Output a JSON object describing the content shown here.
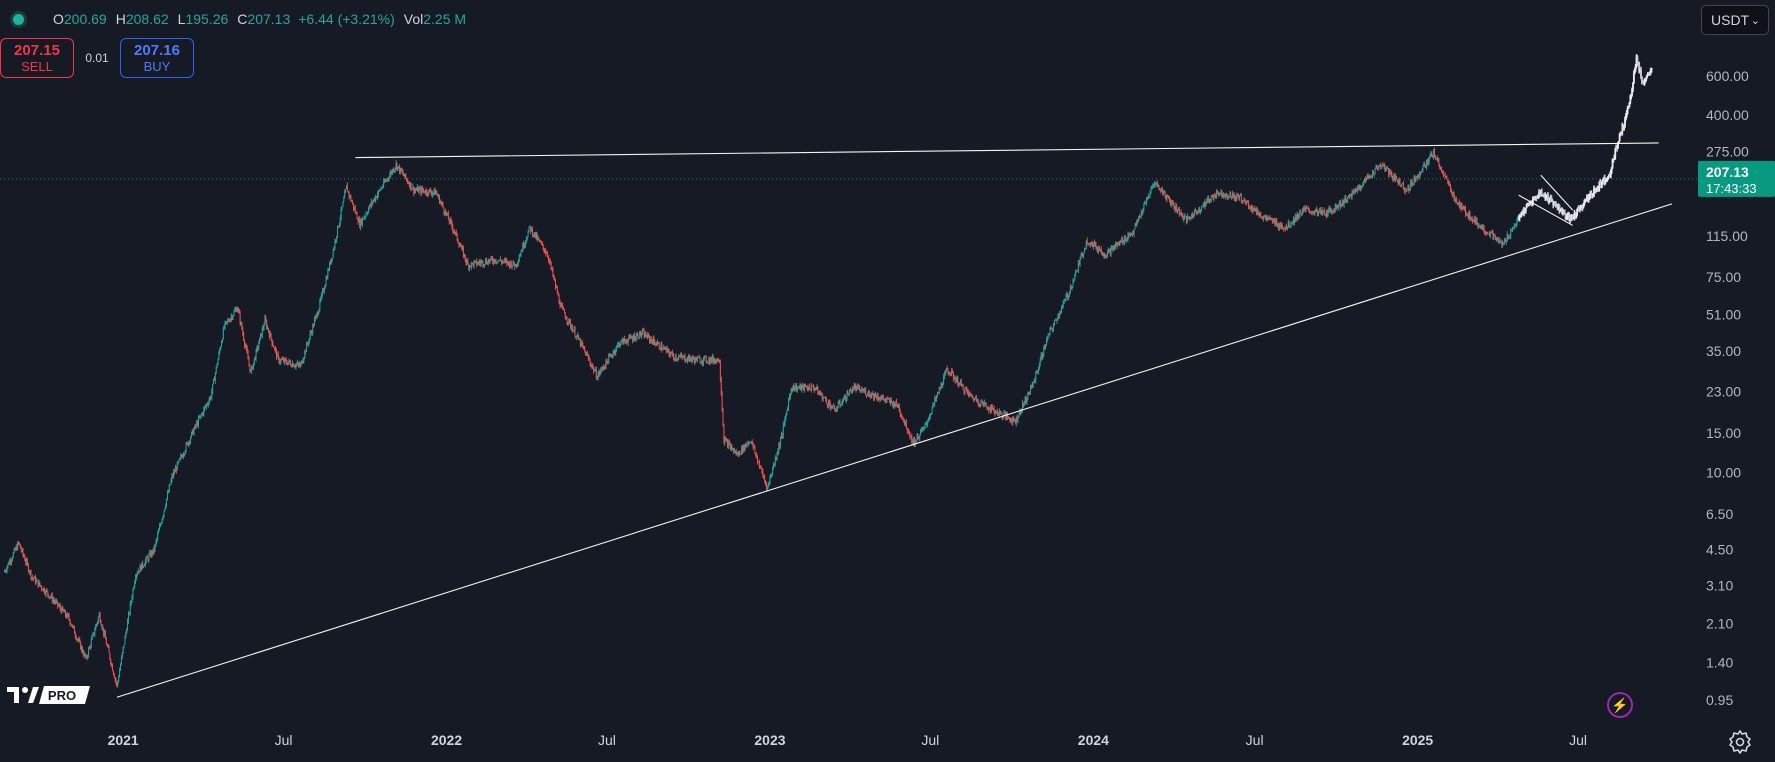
{
  "ohlc": {
    "open_label": "O",
    "open": "200.69",
    "high_label": "H",
    "high": "208.62",
    "low_label": "L",
    "low": "195.26",
    "close_label": "C",
    "close": "207.13",
    "change": "+6.44 (+3.21%)",
    "vol_label": "Vol",
    "vol": "2.25 M"
  },
  "trade": {
    "sell_price": "207.15",
    "sell_label": "SELL",
    "spread": "0.01",
    "buy_price": "207.16",
    "buy_label": "BUY"
  },
  "currency": "USDT",
  "price_label": {
    "price": "207.13",
    "countdown": "17:43:33"
  },
  "logo_text": "PRO",
  "colors": {
    "up": "#26a69a",
    "down": "#ef5350",
    "background": "#161a25",
    "trendline": "#ffffff",
    "price_tag": "#089981",
    "sell": "#f23645",
    "buy": "#2962ff"
  },
  "icons": [
    "lightning-icon",
    "gear-icon",
    "chevron-down-icon",
    "tradingview-logo"
  ],
  "chart_data": {
    "type": "candlestick",
    "y_scale": "log",
    "ylim": [
      0.85,
      800
    ],
    "y_ticks": [
      600,
      400,
      275,
      115,
      75,
      51,
      35,
      23,
      15,
      10,
      6.5,
      4.5,
      3.1,
      2.1,
      1.4,
      0.95
    ],
    "y_tick_labels": [
      "600.00",
      "400.00",
      "275.00",
      "115.00",
      "75.00",
      "51.00",
      "35.00",
      "23.00",
      "15.00",
      "10.00",
      "6.50",
      "4.50",
      "3.10",
      "2.10",
      "1.40",
      "0.95"
    ],
    "x_range": [
      "2020-08-15",
      "2025-11-10"
    ],
    "x_ticks": [
      {
        "date": "2021-01-01",
        "label": "2021"
      },
      {
        "date": "2021-07-01",
        "label": "Jul"
      },
      {
        "date": "2022-01-01",
        "label": "2022"
      },
      {
        "date": "2022-07-01",
        "label": "Jul"
      },
      {
        "date": "2023-01-01",
        "label": "2023"
      },
      {
        "date": "2023-07-01",
        "label": "Jul"
      },
      {
        "date": "2024-01-01",
        "label": "2024"
      },
      {
        "date": "2024-07-01",
        "label": "Jul"
      },
      {
        "date": "2025-01-01",
        "label": "2025"
      },
      {
        "date": "2025-07-01",
        "label": "Jul"
      }
    ],
    "last_price": 207.13,
    "price_path": [
      [
        "2020-08-20",
        3.6
      ],
      [
        "2020-09-05",
        4.8
      ],
      [
        "2020-09-20",
        3.4
      ],
      [
        "2020-10-10",
        2.8
      ],
      [
        "2020-11-01",
        2.2
      ],
      [
        "2020-11-20",
        1.45
      ],
      [
        "2020-12-05",
        2.3
      ],
      [
        "2020-12-25",
        1.1
      ],
      [
        "2021-01-15",
        3.5
      ],
      [
        "2021-02-05",
        4.5
      ],
      [
        "2021-02-25",
        9.5
      ],
      [
        "2021-03-20",
        15
      ],
      [
        "2021-04-10",
        22
      ],
      [
        "2021-04-25",
        45
      ],
      [
        "2021-05-10",
        55
      ],
      [
        "2021-05-25",
        28
      ],
      [
        "2021-06-10",
        48
      ],
      [
        "2021-06-25",
        32
      ],
      [
        "2021-07-20",
        30
      ],
      [
        "2021-08-10",
        55
      ],
      [
        "2021-08-25",
        95
      ],
      [
        "2021-09-10",
        190
      ],
      [
        "2021-09-25",
        130
      ],
      [
        "2021-10-10",
        165
      ],
      [
        "2021-11-05",
        240
      ],
      [
        "2021-11-25",
        185
      ],
      [
        "2021-12-20",
        180
      ],
      [
        "2022-01-10",
        120
      ],
      [
        "2022-01-25",
        85
      ],
      [
        "2022-02-25",
        90
      ],
      [
        "2022-03-20",
        85
      ],
      [
        "2022-04-05",
        125
      ],
      [
        "2022-04-25",
        95
      ],
      [
        "2022-05-10",
        55
      ],
      [
        "2022-06-01",
        38
      ],
      [
        "2022-06-20",
        27
      ],
      [
        "2022-07-15",
        38
      ],
      [
        "2022-08-10",
        42
      ],
      [
        "2022-08-25",
        38
      ],
      [
        "2022-09-15",
        33
      ],
      [
        "2022-10-10",
        32
      ],
      [
        "2022-11-05",
        32
      ],
      [
        "2022-11-10",
        14
      ],
      [
        "2022-11-25",
        12
      ],
      [
        "2022-12-10",
        14
      ],
      [
        "2022-12-29",
        8.5
      ],
      [
        "2023-01-15",
        15
      ],
      [
        "2023-01-25",
        24
      ],
      [
        "2023-02-20",
        24
      ],
      [
        "2023-03-15",
        19
      ],
      [
        "2023-04-05",
        24
      ],
      [
        "2023-05-01",
        22
      ],
      [
        "2023-05-25",
        20
      ],
      [
        "2023-06-12",
        13.5
      ],
      [
        "2023-06-25",
        16
      ],
      [
        "2023-07-20",
        29
      ],
      [
        "2023-08-15",
        22
      ],
      [
        "2023-09-10",
        19
      ],
      [
        "2023-10-05",
        17
      ],
      [
        "2023-10-25",
        25
      ],
      [
        "2023-11-10",
        40
      ],
      [
        "2023-12-05",
        65
      ],
      [
        "2023-12-25",
        110
      ],
      [
        "2024-01-15",
        95
      ],
      [
        "2024-02-15",
        120
      ],
      [
        "2024-03-10",
        200
      ],
      [
        "2024-04-15",
        135
      ],
      [
        "2024-05-20",
        180
      ],
      [
        "2024-06-15",
        170
      ],
      [
        "2024-07-10",
        140
      ],
      [
        "2024-08-05",
        125
      ],
      [
        "2024-08-25",
        150
      ],
      [
        "2024-09-20",
        145
      ],
      [
        "2024-10-15",
        170
      ],
      [
        "2024-11-20",
        240
      ],
      [
        "2024-12-20",
        185
      ],
      [
        "2025-01-19",
        270
      ],
      [
        "2025-02-15",
        160
      ],
      [
        "2025-03-10",
        130
      ],
      [
        "2025-04-07",
        105
      ],
      [
        "2025-05-01",
        150
      ],
      [
        "2025-05-20",
        180
      ],
      [
        "2025-06-05",
        160
      ],
      [
        "2025-06-22",
        135
      ],
      [
        "2025-07-10",
        165
      ],
      [
        "2025-07-25",
        195
      ],
      [
        "2025-08-05",
        215
      ],
      [
        "2025-08-15",
        300
      ],
      [
        "2025-08-28",
        450
      ],
      [
        "2025-09-05",
        720
      ],
      [
        "2025-09-12",
        560
      ],
      [
        "2025-09-22",
        640
      ]
    ],
    "trendlines": [
      {
        "from": [
          "2021-09-20",
          258
        ],
        "to": [
          "2025-09-30",
          300
        ]
      },
      {
        "from": [
          "2020-12-25",
          0.98
        ],
        "to": [
          "2025-10-15",
          160
        ]
      },
      {
        "from": [
          "2025-04-25",
          175
        ],
        "to": [
          "2025-06-25",
          128
        ]
      },
      {
        "from": [
          "2025-05-20",
          215
        ],
        "to": [
          "2025-06-25",
          150
        ]
      }
    ],
    "grid": false,
    "legend": "none"
  }
}
